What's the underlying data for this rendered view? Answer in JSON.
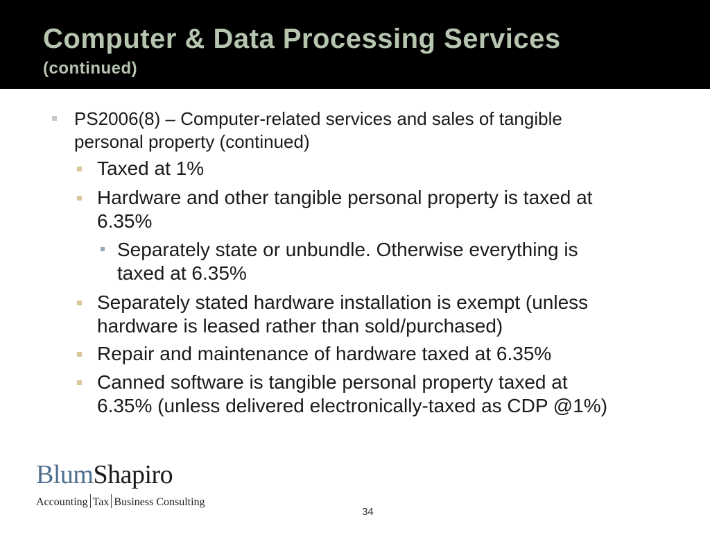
{
  "slide": {
    "title": "Computer & Data Processing Services",
    "subtitle": "(continued)",
    "page_number": "34"
  },
  "bullets": [
    {
      "level": 1,
      "text_lines": [
        "PS2006(8) – Computer-related services and sales of tangible",
        "personal property (continued)"
      ]
    },
    {
      "level": 2,
      "text_lines": [
        "Taxed at 1%"
      ]
    },
    {
      "level": 2,
      "text_lines": [
        "Hardware and other tangible personal property is taxed at",
        "6.35%"
      ]
    },
    {
      "level": 3,
      "text_lines": [
        "Separately state or unbundle. Otherwise everything is",
        "taxed at 6.35%"
      ]
    },
    {
      "level": 2,
      "text_lines": [
        "Separately stated hardware installation is exempt (unless",
        "hardware is leased rather than sold/purchased)"
      ]
    },
    {
      "level": 2,
      "text_lines": [
        "Repair and maintenance of hardware taxed at 6.35%"
      ]
    },
    {
      "level": 2,
      "text_lines": [
        "Canned software is tangible personal property taxed at",
        "6.35% (unless delivered electronically-taxed as CDP @1%)"
      ]
    }
  ],
  "logo": {
    "name_part1": "Blum",
    "name_part2": "Shapiro",
    "tagline_1": "Accounting",
    "tagline_2": "Tax",
    "tagline_3": "Business Consulting"
  },
  "colors": {
    "header_bg": "#000000",
    "title_text": "#b6c5b0",
    "bullet_lvl1": "#c8c8c8",
    "bullet_lvl2": "#d8c79a",
    "bullet_lvl3": "#9aa7b4",
    "logo_blue": "#4f6f8f"
  }
}
